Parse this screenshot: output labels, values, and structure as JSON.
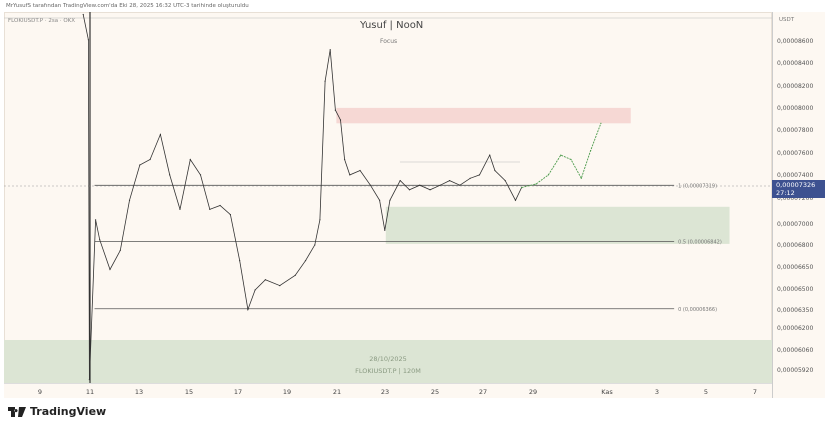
{
  "header": {
    "credit": "MrYusufS tarafından TradingView.com'da Eki 28, 2025 16:32 UTC-3 tarihinde oluşturuldu",
    "symbol": "FLOKIUSDT.P · 2sa · OKX",
    "title": "Yusuf | NooN",
    "subtitle": "Focus"
  },
  "price_axis": {
    "currency": "USDT",
    "current_price": "0,00007326",
    "countdown": "27:12",
    "current_color": "#3d5190"
  },
  "bottom_zone": {
    "date": "28/10/2025",
    "symbol": "FLOKIUSDT.P | 120M"
  },
  "logo": {
    "text": "TradingView"
  },
  "chart_data": {
    "type": "line",
    "title": "Yusuf | NooN",
    "y_ticks": [
      "0,00008600",
      "0,00008400",
      "0,00008200",
      "0,00008000",
      "0,00007800",
      "0,00007600",
      "0,00007400",
      "0,00007200",
      "0,00007000",
      "0,00006800",
      "0,00006650",
      "0,00006500",
      "0,00006350",
      "0,00006200",
      "0,00006060",
      "0,00005920"
    ],
    "x_ticks": [
      "9",
      "11",
      "13",
      "15",
      "17",
      "19",
      "21",
      "23",
      "25",
      "27",
      "29",
      "Kas",
      "3",
      "5",
      "7"
    ],
    "grid": false,
    "series": [
      {
        "color": "#333333",
        "points": [
          [
            "2025-10-10T18:00",
            8.85e-05
          ],
          [
            "2025-10-10T23:00",
            8.62e-05
          ],
          [
            "2025-10-11T00:00",
            5.86e-05
          ],
          [
            "2025-10-11T06:00",
            7.04e-05
          ],
          [
            "2025-10-11T10:00",
            6.86e-05
          ],
          [
            "2025-10-11T20:00",
            6.64e-05
          ],
          [
            "2025-10-12T06:00",
            6.77e-05
          ],
          [
            "2025-10-12T15:00",
            7.19e-05
          ],
          [
            "2025-10-13T01:00",
            7.5e-05
          ],
          [
            "2025-10-13T11:00",
            7.55e-05
          ],
          [
            "2025-10-13T21:00",
            7.77e-05
          ],
          [
            "2025-10-14T06:00",
            7.41e-05
          ],
          [
            "2025-10-14T16:00",
            7.12e-05
          ],
          [
            "2025-10-15T02:00",
            7.55e-05
          ],
          [
            "2025-10-15T12:00",
            7.41e-05
          ],
          [
            "2025-10-15T21:00",
            7.12e-05
          ],
          [
            "2025-10-16T07:00",
            7.15e-05
          ],
          [
            "2025-10-16T17:00",
            7.08e-05
          ],
          [
            "2025-10-17T02:00",
            6.7e-05
          ],
          [
            "2025-10-17T10:00",
            6.36e-05
          ],
          [
            "2025-10-17T17:00",
            6.5e-05
          ],
          [
            "2025-10-18T03:00",
            6.57e-05
          ],
          [
            "2025-10-18T17:00",
            6.53e-05
          ],
          [
            "2025-10-19T08:00",
            6.6e-05
          ],
          [
            "2025-10-19T18:00",
            6.7e-05
          ],
          [
            "2025-10-20T03:00",
            6.81e-05
          ],
          [
            "2025-10-20T08:00",
            7.04e-05
          ],
          [
            "2025-10-20T13:00",
            8.25e-05
          ],
          [
            "2025-10-20T18:00",
            8.53e-05
          ],
          [
            "2025-10-20T23:00",
            7.99e-05
          ],
          [
            "2025-10-21T04:00",
            7.9e-05
          ],
          [
            "2025-10-21T08:00",
            7.55e-05
          ],
          [
            "2025-10-21T13:00",
            7.41e-05
          ],
          [
            "2025-10-21T23:00",
            7.45e-05
          ],
          [
            "2025-10-22T09:00",
            7.32e-05
          ],
          [
            "2025-10-22T18:00",
            7.19e-05
          ],
          [
            "2025-10-22T23:00",
            6.95e-05
          ],
          [
            "2025-10-23T04:00",
            7.19e-05
          ],
          [
            "2025-10-23T14:00",
            7.36e-05
          ],
          [
            "2025-10-23T23:00",
            7.28e-05
          ],
          [
            "2025-10-24T09:00",
            7.32e-05
          ],
          [
            "2025-10-24T19:00",
            7.28e-05
          ],
          [
            "2025-10-25T05:00",
            7.32e-05
          ],
          [
            "2025-10-25T14:00",
            7.36e-05
          ],
          [
            "2025-10-26T00:00",
            7.32e-05
          ],
          [
            "2025-10-26T10:00",
            7.38e-05
          ],
          [
            "2025-10-26T19:00",
            7.41e-05
          ],
          [
            "2025-10-27T05:00",
            7.59e-05
          ],
          [
            "2025-10-27T10:00",
            7.45e-05
          ],
          [
            "2025-10-27T20:00",
            7.36e-05
          ],
          [
            "2025-10-28T06:00",
            7.19e-05
          ],
          [
            "2025-10-28T12:00",
            7.3e-05
          ]
        ]
      },
      {
        "color": "#4a9a4a",
        "dashed": true,
        "points": [
          [
            "2025-10-28T12:00",
            7.3e-05
          ],
          [
            "2025-10-29T02:00",
            7.33e-05
          ],
          [
            "2025-10-29T14:00",
            7.41e-05
          ],
          [
            "2025-10-30T02:00",
            7.59e-05
          ],
          [
            "2025-10-30T12:00",
            7.55e-05
          ],
          [
            "2025-10-30T22:00",
            7.38e-05
          ],
          [
            "2025-10-31T07:00",
            7.63e-05
          ],
          [
            "2025-10-31T17:00",
            7.87e-05
          ]
        ]
      }
    ],
    "zones": [
      {
        "from": "2025-10-21T00:00",
        "to": "2025-11-01T22:00",
        "top": 8.01e-05,
        "bottom": 7.87e-05,
        "color": "#f6d8d4"
      },
      {
        "from": "2025-10-23T00:00",
        "to": "2025-11-05T22:00",
        "top": 7.14e-05,
        "bottom": 6.82e-05,
        "color": "#dce5d4"
      }
    ],
    "fib_levels": [
      {
        "label": "1 (0,00007319)",
        "price": 7.319e-05
      },
      {
        "label": "0.5 (0,00006842)",
        "price": 6.842e-05
      },
      {
        "label": "0 (0,00006366)",
        "price": 6.366e-05
      }
    ],
    "fib_range": [
      "2025-10-11T05:00",
      "2025-11-03T22:00"
    ]
  }
}
